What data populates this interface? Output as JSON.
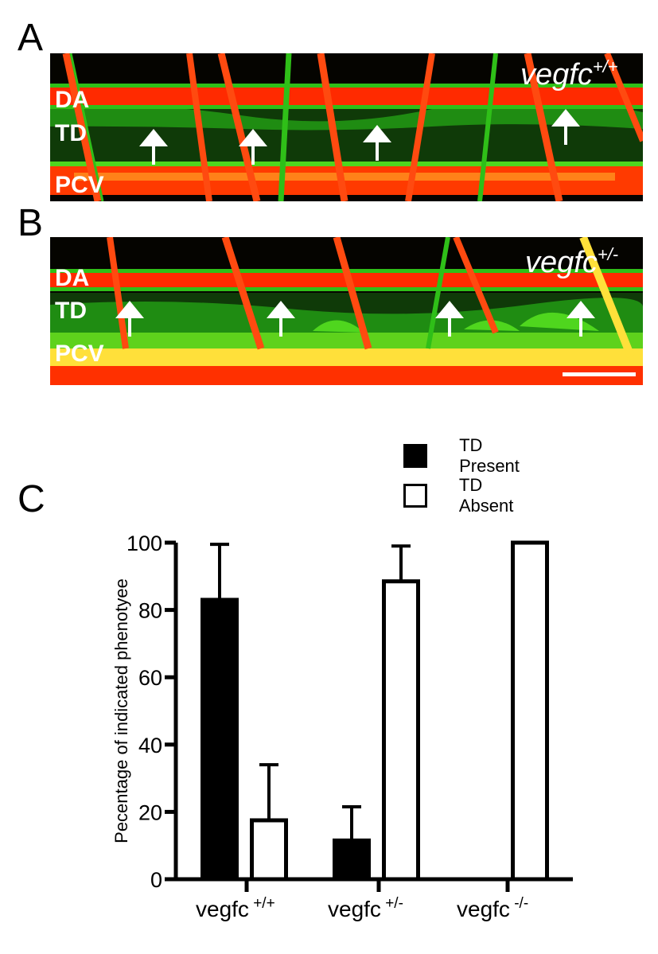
{
  "panels": {
    "a": {
      "letter": "A",
      "genotype": "vegfc",
      "genotype_sup": "+/+",
      "labels": {
        "da": "DA",
        "td": "TD",
        "pcv": "PCV"
      }
    },
    "b": {
      "letter": "B",
      "genotype": "vegfc",
      "genotype_sup": "+/-",
      "labels": {
        "da": "DA",
        "td": "TD",
        "pcv": "PCV"
      }
    },
    "c": {
      "letter": "C"
    }
  },
  "legend": {
    "present_label": "TD Present",
    "absent_label": "TD Absent"
  },
  "colors": {
    "vessel_red": "#ff2a00",
    "lymph_green": "#22c21a",
    "overlap_yellow": "#ffe03a",
    "present_fill": "#000000",
    "absent_fill": "#ffffff"
  },
  "chart_data": {
    "type": "bar",
    "categories": [
      "vegfc",
      "vegfc",
      "vegfc"
    ],
    "category_sups": [
      "+/+",
      "+/-",
      "-/-"
    ],
    "ylabel": "Pecentage of indicated phenotyee",
    "ylim": [
      0,
      100
    ],
    "yticks": [
      0,
      20,
      40,
      60,
      80,
      100
    ],
    "series": [
      {
        "name": "TD Present",
        "values": [
          83,
          11.5,
          0
        ],
        "errors": [
          16.5,
          10,
          0
        ],
        "fill": "#000000"
      },
      {
        "name": "TD Absent",
        "values": [
          17.5,
          88.5,
          100
        ],
        "errors": [
          16.5,
          10.5,
          0
        ],
        "fill": "#ffffff"
      }
    ]
  }
}
